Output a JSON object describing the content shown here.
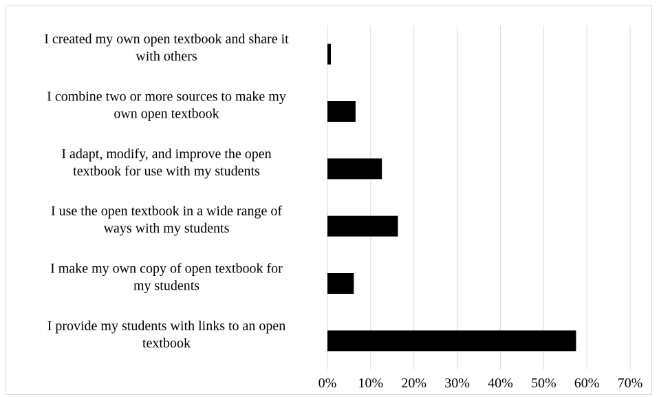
{
  "chart_data": {
    "type": "bar",
    "orientation": "horizontal",
    "categories": [
      "I created my own open textbook and share it with others",
      "I combine two or more sources to make my own open textbook",
      "I adapt, modify, and improve the open textbook for use with my students",
      "I use the open textbook in a wide range of ways with my students",
      "I make my own copy of open textbook for my students",
      "I provide my students with links to an open textbook"
    ],
    "category_lines": [
      [
        "I created my own open textbook and share it",
        "with others"
      ],
      [
        "I combine two or more sources to make my",
        "own open textbook"
      ],
      [
        "I adapt, modify, and improve the open",
        "textbook for use with my students"
      ],
      [
        "I use the open textbook in a wide range of",
        "ways with my students"
      ],
      [
        "I make my own copy of open textbook for",
        "my students"
      ],
      [
        "I provide my students with links to an open",
        "textbook"
      ]
    ],
    "values": [
      0.8,
      6.5,
      12.6,
      16.3,
      6.1,
      57.5
    ],
    "xlim": [
      0,
      70
    ],
    "xticks": [
      "0%",
      "10%",
      "20%",
      "30%",
      "40%",
      "50%",
      "60%",
      "70%"
    ],
    "grid": true,
    "bar_color": "#000000",
    "grid_color": "#d9d9d9",
    "title": "",
    "xlabel": "",
    "ylabel": ""
  }
}
